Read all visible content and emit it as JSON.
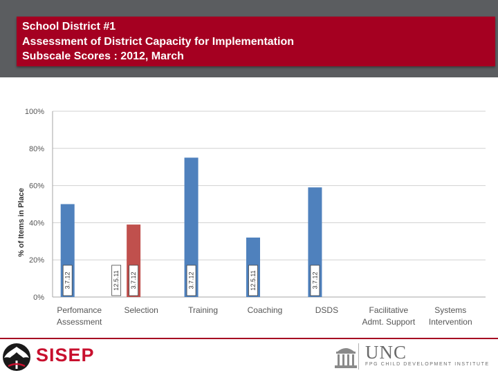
{
  "header": {
    "title_line_1": "School District  #1",
    "title_line_2": "Assessment of District Capacity for Implementation",
    "title_line_3": "Subscale Scores : 2012, March"
  },
  "colors": {
    "title_bar": "#a50021",
    "series_3_7_12": "#4f81bd",
    "series_12_5_11": "#c0504d"
  },
  "chart_data": {
    "type": "bar",
    "title": "",
    "xlabel": "",
    "ylabel": "% of Items in Place",
    "ylim": [
      0,
      100
    ],
    "yticks": [
      0,
      20,
      40,
      60,
      80,
      100
    ],
    "ytick_labels": [
      "0%",
      "20%",
      "40%",
      "60%",
      "80%",
      "100%"
    ],
    "grid": true,
    "legend": "none",
    "categories": [
      [
        "Perfomance",
        "Assessment"
      ],
      [
        "Selection"
      ],
      [
        "Training"
      ],
      [
        "Coaching"
      ],
      [
        "DSDS"
      ],
      [
        "Facilitative",
        "Admt. Support"
      ],
      [
        "Systems",
        "Intervention"
      ]
    ],
    "bars": [
      {
        "category": 0,
        "label": "3.7.12",
        "value": 50,
        "color": "#4f81bd",
        "kind": "bar"
      },
      {
        "category": 1,
        "label": "12.5.11",
        "value": 0,
        "color": "#4f81bd",
        "kind": "label-only"
      },
      {
        "category": 1,
        "label": "3.7.12",
        "value": 39,
        "color": "#c0504d",
        "kind": "bar"
      },
      {
        "category": 2,
        "label": "3.7.12",
        "value": 75,
        "color": "#4f81bd",
        "kind": "bar"
      },
      {
        "category": 3,
        "label": "12.5.11",
        "value": 32,
        "color": "#4f81bd",
        "kind": "bar"
      },
      {
        "category": 4,
        "label": "3.7.12",
        "value": 59,
        "color": "#4f81bd",
        "kind": "bar"
      }
    ]
  },
  "footer": {
    "left_logo_text": "SISEP",
    "right_logo_text": "UNC",
    "right_logo_subtext": "FPG CHILD DEVELOPMENT INSTITUTE"
  }
}
